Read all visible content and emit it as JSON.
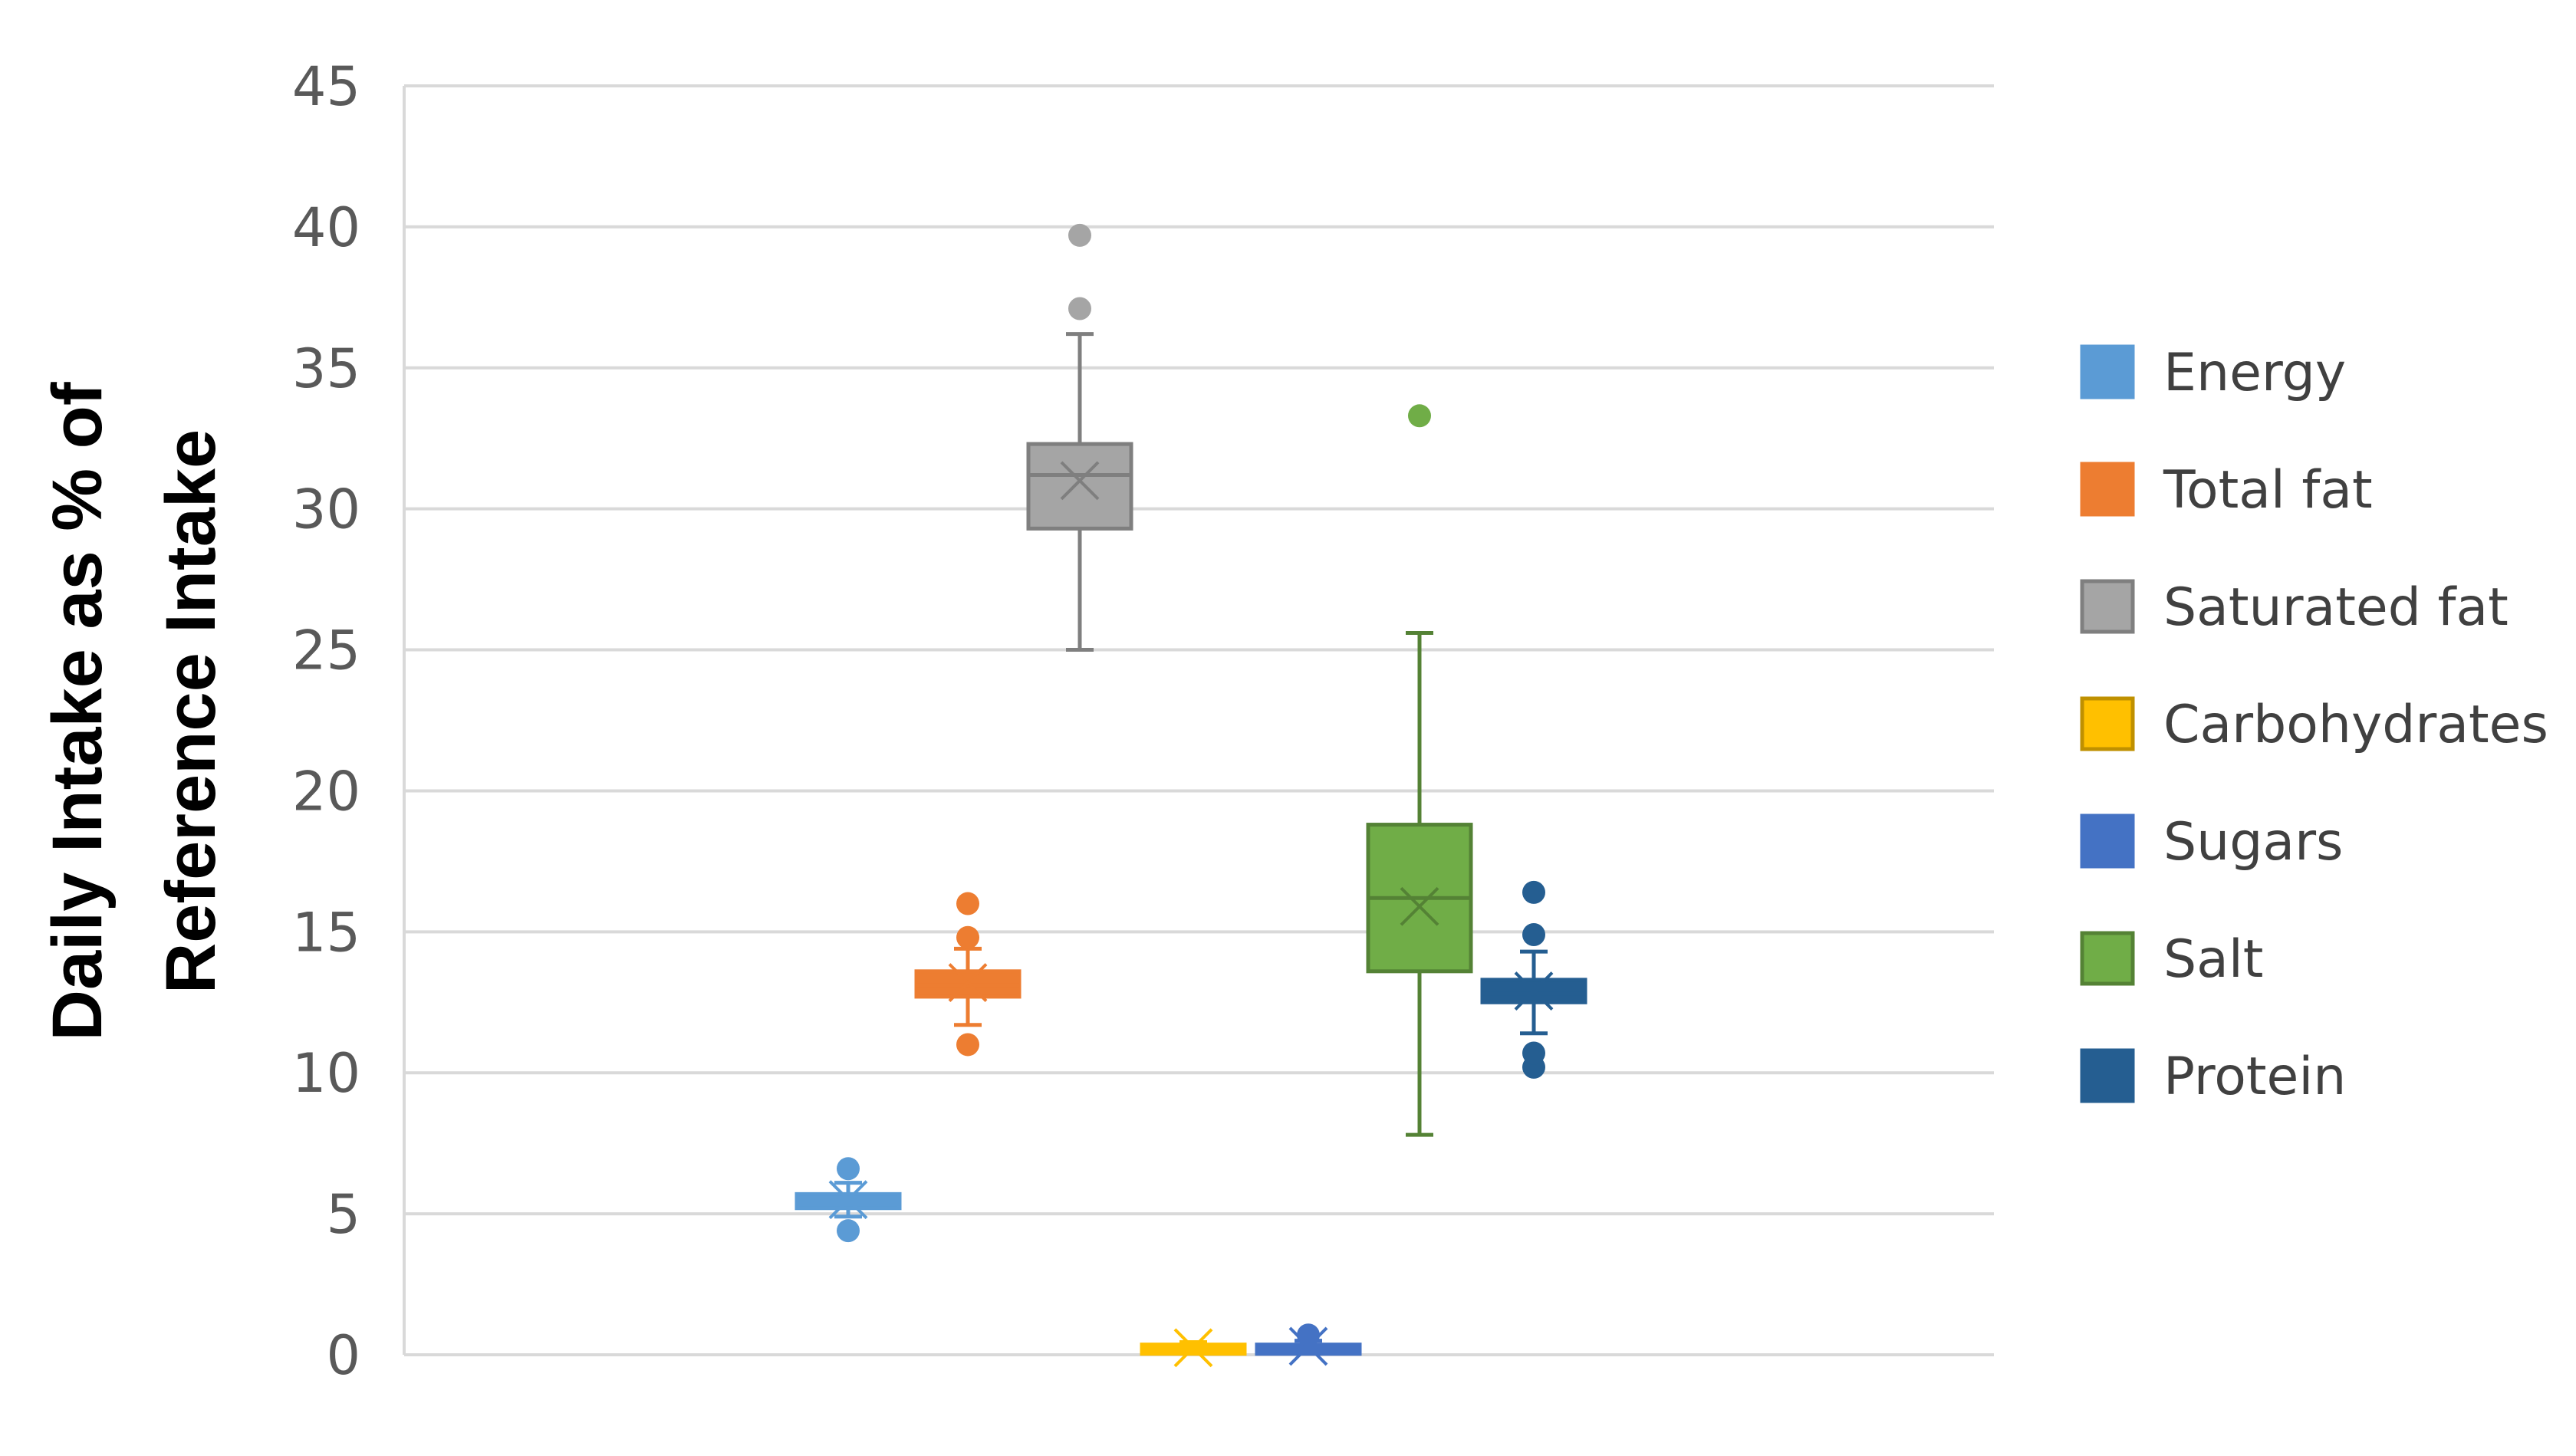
{
  "chart_data": {
    "type": "box",
    "title": "",
    "xlabel": "",
    "ylabel_lines": [
      "Daily Intake as % of",
      "Reference Intake"
    ],
    "ylim": [
      0,
      45
    ],
    "yticks": [
      0,
      5,
      10,
      15,
      20,
      25,
      30,
      35,
      40,
      45
    ],
    "grid": true,
    "legend_position": "right",
    "series": [
      {
        "name": "Energy",
        "color": "#5B9BD5",
        "min": 4.9,
        "q1": 5.2,
        "median": 5.4,
        "q3": 5.7,
        "max": 6.1,
        "mean": 5.5,
        "outliers": [
          4.4,
          6.6
        ]
      },
      {
        "name": "Total fat",
        "color": "#ED7D31",
        "min": 11.7,
        "q1": 12.7,
        "median": 13.1,
        "q3": 13.6,
        "max": 14.4,
        "mean": 13.2,
        "outliers": [
          11.0,
          14.8,
          16.0
        ]
      },
      {
        "name": "Saturated fat",
        "color": "#A5A5A5",
        "min": 25.0,
        "q1": 29.3,
        "median": 31.2,
        "q3": 32.3,
        "max": 36.2,
        "mean": 31.0,
        "outliers": [
          37.1,
          39.7
        ]
      },
      {
        "name": "Carbohydrates",
        "color": "#FFC000",
        "min": 0.05,
        "q1": 0.1,
        "median": 0.2,
        "q3": 0.3,
        "max": 0.45,
        "mean": 0.25,
        "outliers": []
      },
      {
        "name": "Sugars",
        "color": "#4472C4",
        "min": 0.05,
        "q1": 0.1,
        "median": 0.2,
        "q3": 0.3,
        "max": 0.5,
        "mean": 0.3,
        "outliers": [
          0.7
        ]
      },
      {
        "name": "Salt",
        "color": "#70AD47",
        "min": 7.8,
        "q1": 13.6,
        "median": 16.2,
        "q3": 18.8,
        "max": 25.6,
        "mean": 15.9,
        "outliers": [
          33.3
        ]
      },
      {
        "name": "Protein",
        "color": "#255E91",
        "min": 11.4,
        "q1": 12.5,
        "median": 12.8,
        "q3": 13.3,
        "max": 14.3,
        "mean": 12.9,
        "outliers": [
          10.2,
          10.7,
          14.9,
          16.4
        ]
      }
    ]
  }
}
